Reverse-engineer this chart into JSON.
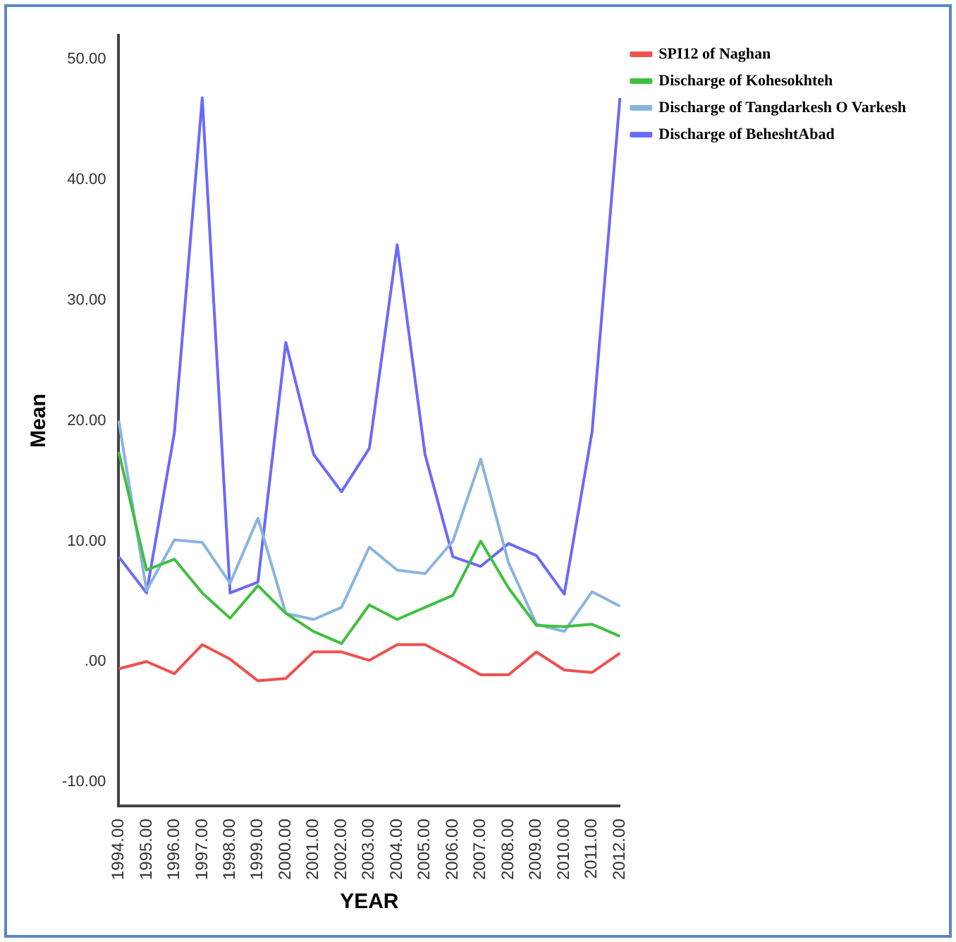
{
  "chart_data": {
    "type": "line",
    "xlabel": "YEAR",
    "ylabel": "Mean",
    "categories": [
      "1994.00",
      "1995.00",
      "1996.00",
      "1997.00",
      "1998.00",
      "1999.00",
      "2000.00",
      "2001.00",
      "2002.00",
      "2003.00",
      "2004.00",
      "2005.00",
      "2006.00",
      "2007.00",
      "2008.00",
      "2009.00",
      "2010.00",
      "2011.00",
      "2012.00"
    ],
    "series": [
      {
        "name": "SPI12 of Naghan",
        "color": "#f05050",
        "values": [
          -0.6,
          0,
          -1.0,
          1.4,
          0.2,
          -1.6,
          -1.4,
          0.8,
          0.8,
          0.1,
          1.4,
          1.4,
          0.2,
          -1.1,
          -1.1,
          0.8,
          -0.7,
          -0.9,
          0.7
        ]
      },
      {
        "name": "Discharge of Kohesokhteh",
        "color": "#40c040",
        "values": [
          17.4,
          7.6,
          8.5,
          5.7,
          3.6,
          6.3,
          4.0,
          2.5,
          1.5,
          4.7,
          3.5,
          4.5,
          5.5,
          10.0,
          6.1,
          3.0,
          2.9,
          3.1,
          2.1
        ]
      },
      {
        "name": "Discharge of Tangdarkesh O Varkesh",
        "color": "#8ab4e0",
        "values": [
          20.0,
          5.9,
          10.1,
          9.9,
          6.5,
          11.9,
          4.0,
          3.5,
          4.5,
          9.5,
          7.6,
          7.3,
          10.0,
          16.8,
          8.2,
          3.1,
          2.5,
          5.8,
          4.6
        ]
      },
      {
        "name": "Discharge of BeheshtAbad",
        "color": "#6a6af8",
        "values": [
          8.7,
          5.7,
          19.0,
          46.8,
          5.7,
          6.6,
          26.5,
          17.2,
          14.1,
          17.7,
          34.6,
          17.2,
          8.7,
          7.9,
          9.8,
          8.8,
          5.6,
          19.1,
          46.8
        ]
      }
    ],
    "ylim": [
      -12,
      52
    ],
    "yticks": [
      {
        "value": -10,
        "label": "-10.00"
      },
      {
        "value": 0,
        "label": ".00"
      },
      {
        "value": 10,
        "label": "10.00"
      },
      {
        "value": 20,
        "label": "20.00"
      },
      {
        "value": 30,
        "label": "30.00"
      },
      {
        "value": 40,
        "label": "40.00"
      },
      {
        "value": 50,
        "label": "50.00"
      }
    ],
    "grid": false,
    "legend": "top right",
    "marker": "none",
    "line_style": "solid"
  }
}
